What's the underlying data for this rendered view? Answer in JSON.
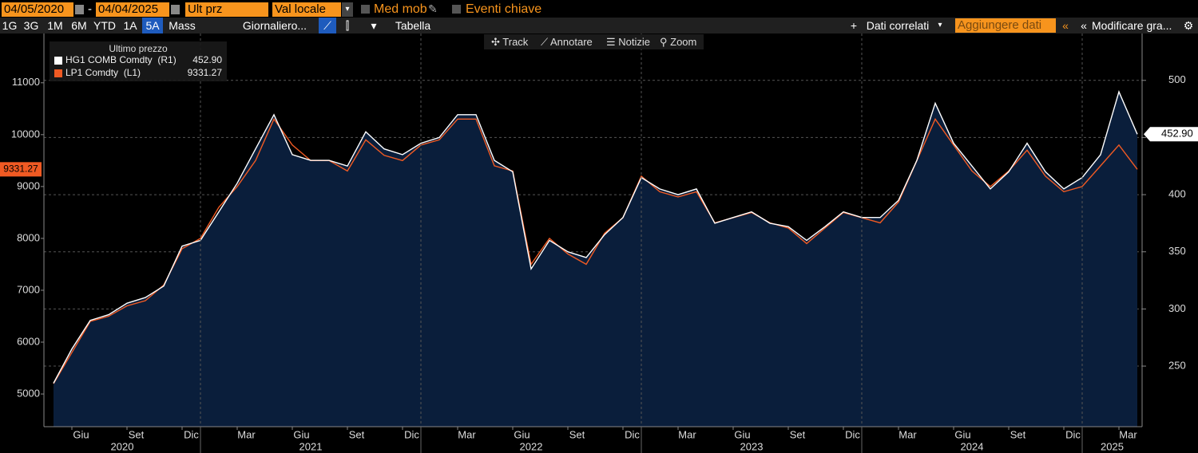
{
  "toolbar": {
    "start_date": "04/05/2020",
    "separator": "-",
    "end_date": "04/04/2025",
    "field": "Ult prz",
    "currency": "Val locale",
    "moving_avg": "Med mob",
    "key_events": "Eventi chiave",
    "periods": [
      "1G",
      "3G",
      "1M",
      "6M",
      "YTD",
      "1A",
      "5A",
      "Mass"
    ],
    "selected_period": "5A",
    "frequency": "Giornaliero...",
    "table": "Tabella",
    "related": "Dati correlati",
    "add_data": "Aggiungere dati",
    "edit": "Modificare gra...",
    "tools": [
      "Track",
      "Annotare",
      "Notizie",
      "Zoom"
    ]
  },
  "chart_data": {
    "type": "line",
    "legend_title": "Ultimo prezzo",
    "x": [
      "2020-05",
      "2020-06",
      "2020-07",
      "2020-08",
      "2020-09",
      "2020-10",
      "2020-11",
      "2020-12",
      "2021-01",
      "2021-02",
      "2021-03",
      "2021-04",
      "2021-05",
      "2021-06",
      "2021-07",
      "2021-08",
      "2021-09",
      "2021-10",
      "2021-11",
      "2021-12",
      "2022-01",
      "2022-02",
      "2022-03",
      "2022-04",
      "2022-05",
      "2022-06",
      "2022-07",
      "2022-08",
      "2022-09",
      "2022-10",
      "2022-11",
      "2022-12",
      "2023-01",
      "2023-02",
      "2023-03",
      "2023-04",
      "2023-05",
      "2023-06",
      "2023-07",
      "2023-08",
      "2023-09",
      "2023-10",
      "2023-11",
      "2023-12",
      "2024-01",
      "2024-02",
      "2024-03",
      "2024-04",
      "2024-05",
      "2024-06",
      "2024-07",
      "2024-08",
      "2024-09",
      "2024-10",
      "2024-11",
      "2024-12",
      "2025-01",
      "2025-02",
      "2025-03",
      "2025-04"
    ],
    "series": [
      {
        "name": "HG1 COMB Comdty  (R1)",
        "axis": "y2",
        "color": "#ffffff",
        "area_color": "#0a1e3b",
        "last_value_label": "452.90",
        "values": [
          235,
          265,
          290,
          295,
          305,
          310,
          320,
          355,
          360,
          385,
          410,
          440,
          470,
          435,
          430,
          430,
          425,
          455,
          440,
          435,
          445,
          450,
          470,
          470,
          430,
          420,
          335,
          360,
          350,
          345,
          365,
          380,
          415,
          405,
          400,
          405,
          375,
          380,
          385,
          375,
          372,
          360,
          372,
          385,
          380,
          380,
          395,
          430,
          480,
          445,
          425,
          405,
          420,
          445,
          420,
          405,
          415,
          435,
          490,
          452.9
        ]
      },
      {
        "name": "LP1 Comdty  (L1)",
        "axis": "y",
        "color": "#f05a23",
        "last_value_label": "9331.27",
        "values": [
          5200,
          5800,
          6400,
          6500,
          6700,
          6800,
          7100,
          7800,
          8000,
          8600,
          9000,
          9500,
          10300,
          9800,
          9500,
          9500,
          9300,
          9900,
          9600,
          9500,
          9800,
          9900,
          10300,
          10300,
          9400,
          9300,
          7500,
          8000,
          7700,
          7500,
          8100,
          8400,
          9200,
          8900,
          8800,
          8900,
          8300,
          8400,
          8500,
          8300,
          8200,
          7900,
          8200,
          8500,
          8400,
          8300,
          8700,
          9500,
          10300,
          9800,
          9300,
          9000,
          9300,
          9700,
          9200,
          8900,
          9000,
          9400,
          9800,
          9331.27
        ]
      }
    ],
    "ylim": [
      4370,
      11950
    ],
    "yticks": [
      5000,
      6000,
      7000,
      8000,
      9000,
      10000,
      11000
    ],
    "y2lim": [
      197,
      541
    ],
    "y2ticks": [
      250,
      300,
      350,
      400,
      450,
      500
    ],
    "xticks": [
      {
        "value": "2020-06",
        "label": "Giu"
      },
      {
        "value": "2020-09",
        "label": "Set"
      },
      {
        "value": "2020-12",
        "label": "Dic"
      },
      {
        "value": "2021-03",
        "label": "Mar"
      },
      {
        "value": "2021-06",
        "label": "Giu"
      },
      {
        "value": "2021-09",
        "label": "Set"
      },
      {
        "value": "2021-12",
        "label": "Dic"
      },
      {
        "value": "2022-03",
        "label": "Mar"
      },
      {
        "value": "2022-06",
        "label": "Giu"
      },
      {
        "value": "2022-09",
        "label": "Set"
      },
      {
        "value": "2022-12",
        "label": "Dic"
      },
      {
        "value": "2023-03",
        "label": "Mar"
      },
      {
        "value": "2023-06",
        "label": "Giu"
      },
      {
        "value": "2023-09",
        "label": "Set"
      },
      {
        "value": "2023-12",
        "label": "Dic"
      },
      {
        "value": "2024-03",
        "label": "Mar"
      },
      {
        "value": "2024-06",
        "label": "Giu"
      },
      {
        "value": "2024-09",
        "label": "Set"
      },
      {
        "value": "2024-12",
        "label": "Dic"
      },
      {
        "value": "2025-03",
        "label": "Mar"
      }
    ],
    "year_labels": [
      "2020",
      "2021",
      "2022",
      "2023",
      "2024",
      "2025"
    ],
    "grid": true
  }
}
